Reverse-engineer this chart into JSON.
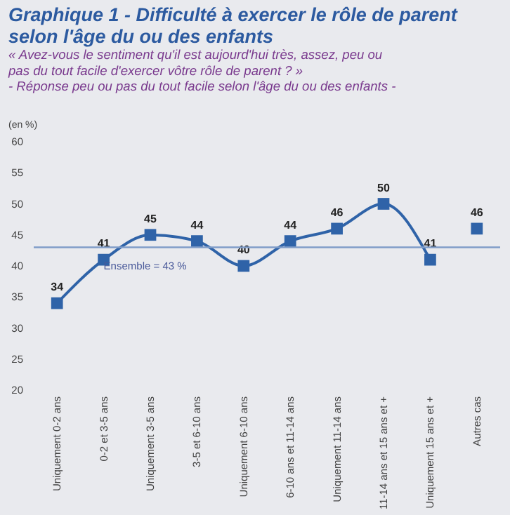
{
  "chart_data": {
    "type": "line",
    "title": "Graphique 1 - Difficulté à exercer le rôle de parent selon l'âge du ou des enfants",
    "subtitle": "« Avez-vous le sentiment qu'il est aujourd'hui très, assez, peu ou pas du tout facile d'exercer vôtre rôle de parent ? »",
    "annotations": [
      "- Réponse peu ou pas du tout facile selon l'âge du ou des enfants -"
    ],
    "ylabel": "(en %)",
    "categories": [
      "Uniquement 0-2 ans",
      "0-2 et 3-5 ans",
      "Uniquement 3-5 ans",
      "3-5 et 6-10 ans",
      "Uniquement 6-10 ans",
      "6-10 ans et 11-14 ans",
      "Uniquement 11-14 ans",
      "11-14 ans et 15 ans et +",
      "Uniquement 15 ans et +",
      "Autres cas"
    ],
    "series": [
      {
        "color": "#2f63a8",
        "values": [
          34,
          41,
          45,
          44,
          40,
          44,
          46,
          50,
          41,
          null
        ]
      },
      {
        "type": "scatter",
        "color": "#2f63a8",
        "values": [
          null,
          null,
          null,
          null,
          null,
          null,
          null,
          null,
          null,
          46
        ]
      }
    ],
    "ylim": [
      20,
      60
    ],
    "yticks": [
      20,
      25,
      30,
      35,
      40,
      45,
      50,
      55,
      60
    ],
    "ref_lines": [
      {
        "axis": "y",
        "value": 43,
        "label": "Ensemble = 43 %",
        "color": "#7f9cc8"
      }
    ],
    "marker": "square",
    "data_labels": true,
    "grid": false
  }
}
